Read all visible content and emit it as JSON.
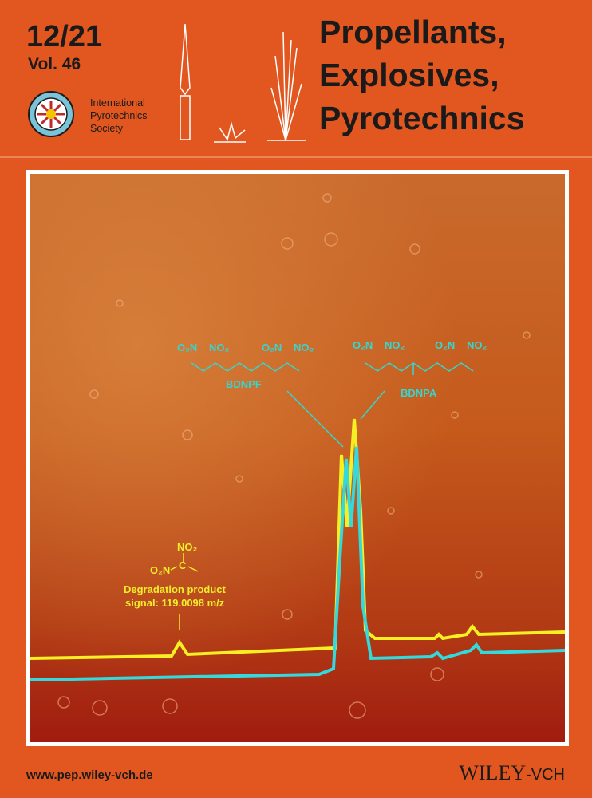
{
  "cover": {
    "issue": "12/21",
    "volume": "Vol. 46",
    "society": [
      "International",
      "Pyrotechnics",
      "Society"
    ],
    "title": [
      "Propellants,",
      "Explosives,",
      "Pyrotechnics"
    ]
  },
  "figure": {
    "structures": [
      {
        "label": "BDNPF",
        "groups": [
          "O₂N",
          "NO₂",
          "O₂N",
          "NO₂"
        ]
      },
      {
        "label": "BDNPA",
        "groups": [
          "O₂N",
          "NO₂",
          "O₂N",
          "NO₂"
        ]
      }
    ],
    "degradation": {
      "groups": [
        "NO₂",
        "O₂N",
        "C"
      ],
      "caption": [
        "Degradation product",
        "signal: 119.0098 m/z"
      ]
    }
  },
  "footer": {
    "url": "www.pep.wiley-vch.de",
    "publisher": "WILEY",
    "publisher_suffix": "-VCH"
  }
}
